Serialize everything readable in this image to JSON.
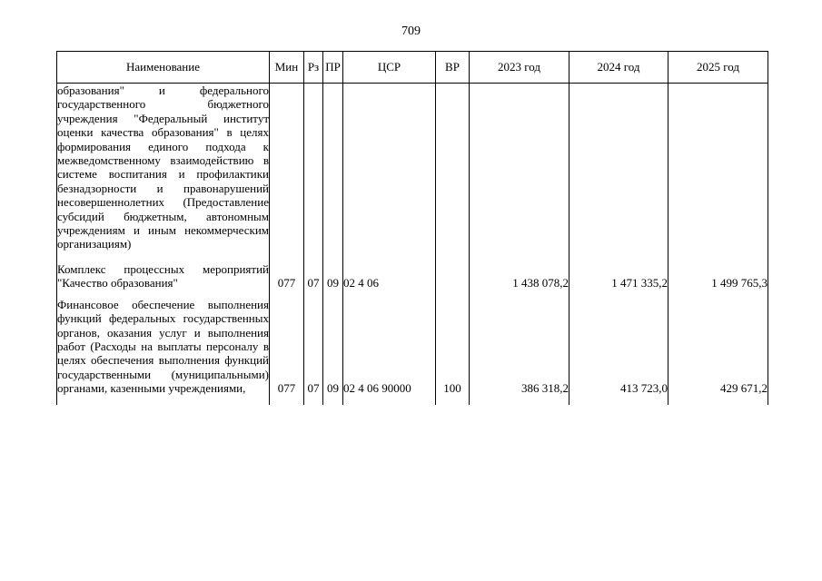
{
  "page_number": "709",
  "table": {
    "headers": {
      "name": "Наименование",
      "min": "Мин",
      "rz": "Рз",
      "pr": "ПР",
      "csr": "ЦСР",
      "vr": "ВР",
      "y2023": "2023 год",
      "y2024": "2024 год",
      "y2025": "2025 год"
    },
    "rows": [
      {
        "name": "образования\" и федерального государственного бюджетного учреждения \"Федеральный институт оценки качества образования\" в целях формирования единого подхода к межведомственному взаимодействию в системе воспитания и профилактики безнадзорности и правонарушений несовершеннолетних (Предоставление субсидий бюджетным, автономным учреждениям и иным некоммерческим организациям)",
        "min": "",
        "rz": "",
        "pr": "",
        "csr": "",
        "vr": "",
        "y2023": "",
        "y2024": "",
        "y2025": ""
      },
      {
        "name": "Комплекс процессных мероприятий \"Качество образования\"",
        "min": "077",
        "rz": "07",
        "pr": "09",
        "csr": "02 4 06",
        "vr": "",
        "y2023": "1 438 078,2",
        "y2024": "1 471 335,2",
        "y2025": "1 499 765,3"
      },
      {
        "name": "Финансовое обеспечение выполнения функций федеральных государственных органов, оказания услуг и выполнения работ (Расходы на выплаты персоналу в целях обеспечения выполнения функций государственными (муниципальными) органами, казенными учреждениями,",
        "min": "077",
        "rz": "07",
        "pr": "09",
        "csr": "02 4 06 90000",
        "vr": "100",
        "y2023": "386 318,2",
        "y2024": "413 723,0",
        "y2025": "429 671,2"
      }
    ]
  }
}
